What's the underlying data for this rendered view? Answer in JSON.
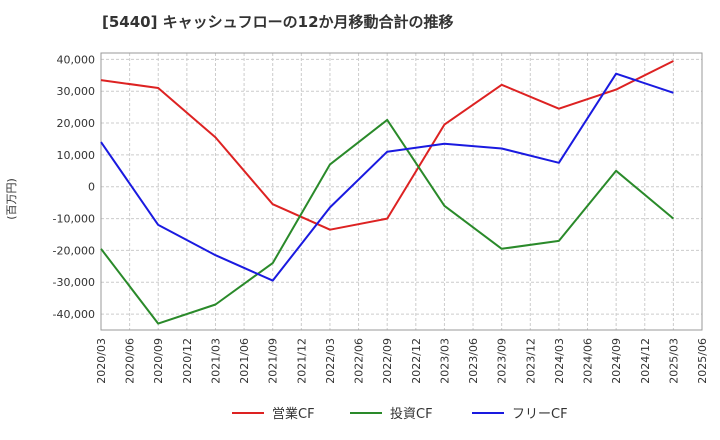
{
  "chart_data": {
    "type": "line",
    "title": "[5440]  キャッシュフローの12か月移動合計の推移",
    "ylabel": "(百万円)",
    "xlabel": "",
    "ylim": [
      -45000,
      42000
    ],
    "y_ticks": [
      40000,
      30000,
      20000,
      10000,
      0,
      -10000,
      -20000,
      -30000,
      -40000
    ],
    "y_tick_labels": [
      "40,000",
      "30,000",
      "20,000",
      "10,000",
      "0",
      "-10,000",
      "-20,000",
      "-30,000",
      "-40,000"
    ],
    "x_tick_labels": [
      "2020/03",
      "2020/06",
      "2020/09",
      "2020/12",
      "2021/03",
      "2021/06",
      "2021/09",
      "2021/12",
      "2022/03",
      "2022/06",
      "2022/09",
      "2022/12",
      "2023/03",
      "2023/06",
      "2023/09",
      "2023/12",
      "2024/03",
      "2024/06",
      "2024/09",
      "2024/12",
      "2025/03",
      "2025/06"
    ],
    "x_points": [
      "2020/03",
      "2020/09",
      "2021/03",
      "2021/09",
      "2022/03",
      "2022/09",
      "2023/03",
      "2023/09",
      "2024/03",
      "2024/09",
      "2025/03"
    ],
    "series": [
      {
        "name": "営業CF",
        "color": "#dd2222",
        "values": [
          33500,
          31000,
          15500,
          -5500,
          -13500,
          -10000,
          19500,
          32000,
          24500,
          30500,
          39500
        ]
      },
      {
        "name": "投資CF",
        "color": "#2a8a2a",
        "values": [
          -19500,
          -43000,
          -37000,
          -24000,
          7000,
          21000,
          -6000,
          -19500,
          -17000,
          5000,
          -10000
        ]
      },
      {
        "name": "フリーCF",
        "color": "#1a1ae0",
        "values": [
          14000,
          -12000,
          -21500,
          -29500,
          -6500,
          11000,
          13500,
          12000,
          7500,
          35500,
          29500
        ]
      }
    ],
    "grid": true,
    "legend_position": "bottom"
  }
}
